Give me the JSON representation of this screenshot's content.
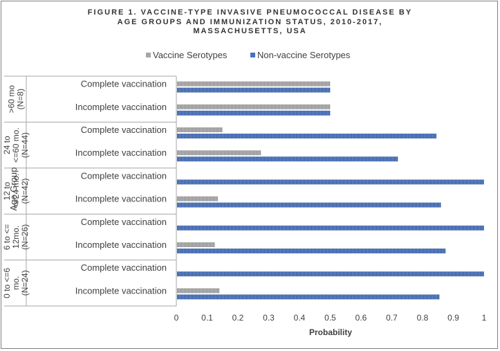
{
  "title_lines": [
    "FIGURE 1. VACCINE-TYPE INVASIVE PNEUMOCOCCAL DISEASE BY",
    "AGE GROUPS AND IMMUNIZATION STATUS, 2010-2017,",
    "MASSACHUSETTS, USA"
  ],
  "colors": {
    "vaccine": "#a6a6a6",
    "non_vaccine": "#4472c4",
    "border": "#7f7f7f"
  },
  "chart_data": {
    "type": "bar",
    "orientation": "horizontal",
    "title": "FIGURE 1. VACCINE-TYPE INVASIVE PNEUMOCOCCAL DISEASE BY AGE GROUPS AND IMMUNIZATION STATUS, 2010-2017, MASSACHUSETTS, USA",
    "xlabel": "Probability",
    "ylabel": "Age Group",
    "xlim": [
      0,
      1
    ],
    "xticks": [
      "0",
      "0.1",
      "0.2",
      "0.3",
      "0.4",
      "0.5",
      "0.6",
      "0.7",
      "0.8",
      "0.9",
      "1"
    ],
    "legend_position": "top",
    "series": [
      {
        "name": "Vaccine Serotypes",
        "color": "#a6a6a6"
      },
      {
        "name": "Non-vaccine Serotypes",
        "color": "#4472c4"
      }
    ],
    "groups": [
      {
        "label_lines": [
          ">60 mo",
          "(N=8)"
        ],
        "rows": [
          {
            "category": "Complete vaccination",
            "vaccine": 0.5,
            "non_vaccine": 0.5
          },
          {
            "category": "Incomplete vaccination",
            "vaccine": 0.5,
            "non_vaccine": 0.5
          }
        ]
      },
      {
        "label_lines": [
          "24 to",
          "<=60 mo.",
          "(N=44)"
        ],
        "rows": [
          {
            "category": "Complete vaccination",
            "vaccine": 0.15,
            "non_vaccine": 0.845
          },
          {
            "category": "Incomplete vaccination",
            "vaccine": 0.275,
            "non_vaccine": 0.72
          }
        ]
      },
      {
        "label_lines": [
          "12 to",
          "<=24 mo.",
          "(N=42)"
        ],
        "rows": [
          {
            "category": "Complete vaccination",
            "vaccine": 0,
            "non_vaccine": 1.0
          },
          {
            "category": "Incomplete vaccination",
            "vaccine": 0.135,
            "non_vaccine": 0.86
          }
        ]
      },
      {
        "label_lines": [
          "6 to <=",
          "12mo.",
          "(N=26)"
        ],
        "rows": [
          {
            "category": "Complete vaccination",
            "vaccine": 0,
            "non_vaccine": 1.0
          },
          {
            "category": "Incomplete vaccination",
            "vaccine": 0.125,
            "non_vaccine": 0.875
          }
        ]
      },
      {
        "label_lines": [
          "0 to <=6",
          "mo.",
          "(N=24)"
        ],
        "rows": [
          {
            "category": "Complete vaccination",
            "vaccine": 0,
            "non_vaccine": 1.0
          },
          {
            "category": "Incomplete vaccination",
            "vaccine": 0.14,
            "non_vaccine": 0.855
          }
        ]
      }
    ]
  }
}
